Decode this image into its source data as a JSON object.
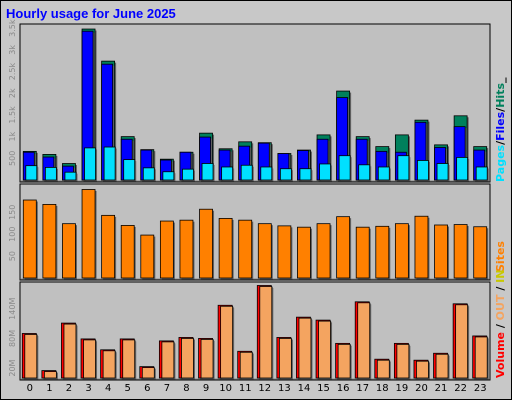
{
  "title": "Hourly usage for June 2025",
  "colors": {
    "hits": "#00805c",
    "files": "#0000ff",
    "pages": "#00e0ff",
    "sites": "#ff8000",
    "volume": "#ff0000",
    "in_out": "#f4a460",
    "title": "#0000ff",
    "in_out_label": "#c8c800"
  },
  "side_labels": {
    "pages": "Pages",
    "files": "Files",
    "hits": "Hits",
    "sites": "Sites",
    "volume": "Volume",
    "in_out": "IN",
    "out": "OUT"
  },
  "chart_data": [
    {
      "type": "bar",
      "name": "usage",
      "categories": [
        "0",
        "1",
        "2",
        "3",
        "4",
        "5",
        "6",
        "7",
        "8",
        "9",
        "10",
        "11",
        "12",
        "13",
        "14",
        "15",
        "16",
        "17",
        "18",
        "19",
        "20",
        "21",
        "22",
        "23"
      ],
      "y_ticks": [
        "500",
        "1k",
        "1.5k",
        "2k",
        "2.5k",
        "3k",
        "3.5k"
      ],
      "ylim": [
        0,
        3550
      ],
      "series": [
        {
          "name": "Hits",
          "values": [
            660,
            590,
            380,
            3480,
            2740,
            1000,
            700,
            480,
            640,
            1080,
            720,
            880,
            860,
            610,
            690,
            1040,
            2050,
            1000,
            770,
            1040,
            1380,
            810,
            1480,
            770
          ]
        },
        {
          "name": "Files",
          "values": [
            640,
            530,
            320,
            3430,
            2670,
            940,
            690,
            460,
            640,
            990,
            690,
            780,
            850,
            610,
            680,
            940,
            1900,
            940,
            660,
            640,
            1330,
            750,
            1230,
            690
          ]
        },
        {
          "name": "Pages",
          "values": [
            330,
            290,
            180,
            740,
            760,
            470,
            280,
            190,
            250,
            380,
            300,
            340,
            300,
            260,
            260,
            370,
            560,
            350,
            300,
            560,
            450,
            380,
            520,
            300
          ]
        }
      ]
    },
    {
      "type": "bar",
      "name": "sites",
      "categories": [
        "0",
        "1",
        "2",
        "3",
        "4",
        "5",
        "6",
        "7",
        "8",
        "9",
        "10",
        "11",
        "12",
        "13",
        "14",
        "15",
        "16",
        "17",
        "18",
        "19",
        "20",
        "21",
        "22",
        "23"
      ],
      "y_ticks": [
        "50",
        "100",
        "150"
      ],
      "ylim": [
        0,
        210
      ],
      "series": [
        {
          "name": "Sites",
          "values": [
            178,
            168,
            124,
            202,
            143,
            120,
            98,
            130,
            132,
            157,
            136,
            132,
            124,
            119,
            116,
            124,
            140,
            116,
            118,
            124,
            141,
            121,
            122,
            117
          ]
        }
      ]
    },
    {
      "type": "bar",
      "name": "volume",
      "categories": [
        "0",
        "1",
        "2",
        "3",
        "4",
        "5",
        "6",
        "7",
        "8",
        "9",
        "10",
        "11",
        "12",
        "13",
        "14",
        "15",
        "16",
        "17",
        "18",
        "19",
        "20",
        "21",
        "22",
        "23"
      ],
      "y_ticks": [
        "20M",
        "80M",
        "140M"
      ],
      "ylim": [
        0,
        190
      ],
      "series": [
        {
          "name": "Volume",
          "values": [
            90,
            15,
            111,
            79,
            57,
            79,
            23,
            75,
            82,
            80,
            147,
            54,
            187,
            82,
            123,
            117,
            70,
            154,
            38,
            70,
            36,
            50,
            150,
            85
          ]
        },
        {
          "name": "IN/OUT",
          "values": [
            88,
            13,
            109,
            77,
            55,
            77,
            21,
            73,
            80,
            78,
            145,
            52,
            185,
            80,
            121,
            115,
            68,
            152,
            36,
            68,
            34,
            48,
            148,
            83
          ]
        }
      ]
    }
  ]
}
